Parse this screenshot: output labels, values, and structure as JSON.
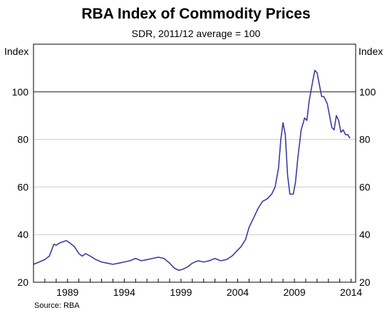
{
  "chart_data": {
    "type": "line",
    "title": "RBA Index of Commodity Prices",
    "subtitle": "SDR, 2011/12 average = 100",
    "ylabel_left": "Index",
    "ylabel_right": "Index",
    "ylim": [
      20,
      120
    ],
    "yticks": [
      20,
      40,
      60,
      80,
      100
    ],
    "reference_line": 100,
    "xlim": [
      1986.0,
      2014.4
    ],
    "xticks": [
      1989,
      1994,
      1999,
      2004,
      2009,
      2014
    ],
    "grid": "horizontal",
    "colors": {
      "line": "#3a3d9c",
      "grid": "#cccccc",
      "reference": "#555555",
      "frame": "#000000"
    },
    "series": [
      {
        "x": [
          1986.0,
          1986.5,
          1987.0,
          1987.4,
          1987.8,
          1988.0,
          1988.3,
          1988.6,
          1988.9,
          1989.2,
          1989.6,
          1990.0,
          1990.3,
          1990.6,
          1991.0,
          1991.5,
          1992.0,
          1992.5,
          1993.0,
          1993.5,
          1994.0,
          1994.5,
          1995.0,
          1995.5,
          1996.0,
          1996.5,
          1997.0,
          1997.5,
          1998.0,
          1998.4,
          1998.8,
          1999.2,
          1999.6,
          2000.0,
          2000.5,
          2001.0,
          2001.5,
          2002.0,
          2002.5,
          2003.0,
          2003.5,
          2003.9,
          2004.3,
          2004.7,
          2005.0,
          2005.4,
          2005.8,
          2006.2,
          2006.6,
          2007.0,
          2007.3,
          2007.6,
          2007.8,
          2008.0,
          2008.2,
          2008.4,
          2008.6,
          2008.9,
          2009.1,
          2009.3,
          2009.6,
          2009.9,
          2010.1,
          2010.3,
          2010.6,
          2010.8,
          2011.0,
          2011.2,
          2011.4,
          2011.6,
          2011.9,
          2012.1,
          2012.3,
          2012.5,
          2012.7,
          2012.9,
          2013.1,
          2013.3,
          2013.5,
          2013.7,
          2013.9
        ],
        "values": [
          27.5,
          28.5,
          29.5,
          31,
          36,
          35.5,
          36.5,
          37,
          37.5,
          36.5,
          35,
          32,
          31,
          32,
          31,
          29.5,
          28.5,
          28,
          27.5,
          28,
          28.5,
          29,
          30,
          29,
          29.5,
          30,
          30.5,
          30,
          28,
          26,
          25,
          25.5,
          26.5,
          28,
          29,
          28.5,
          29,
          30,
          29,
          29.5,
          31,
          33,
          35,
          38,
          43,
          47,
          51,
          54,
          55,
          57,
          60,
          68,
          80,
          87,
          82,
          65,
          57,
          57,
          62,
          72,
          84,
          89,
          88,
          96,
          104,
          109,
          108,
          103,
          98,
          98,
          95,
          90,
          85,
          84,
          90,
          88,
          83,
          84,
          82,
          82,
          80.5
        ]
      }
    ]
  },
  "source": "Source: RBA"
}
